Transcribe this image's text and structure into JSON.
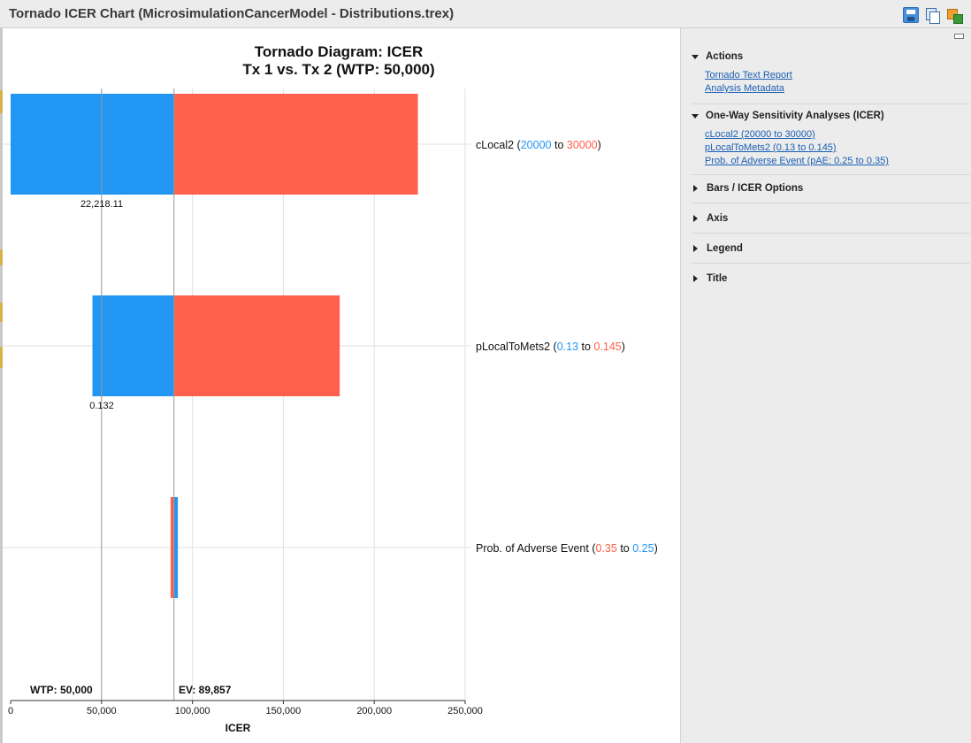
{
  "window": {
    "title": "Tornado ICER Chart (MicrosimulationCancerModel - Distributions.trex)"
  },
  "toolbar": {
    "icons": [
      "save-icon",
      "copy-icon",
      "export-icon"
    ]
  },
  "chart": {
    "title": "Tornado Diagram: ICER",
    "subtitle": "Tx 1 vs. Tx 2 (WTP: 50,000)",
    "xlabel": "ICER",
    "wtp_label": "WTP: 50,000",
    "ev_label": "EV: 89,857",
    "colors": {
      "low": "#2196f3",
      "high": "#ff604c"
    }
  },
  "chart_data": {
    "type": "bar",
    "orientation": "horizontal",
    "title": "Tornado Diagram: ICER",
    "subtitle": "Tx 1 vs. Tx 2 (WTP: 50,000)",
    "xlabel": "ICER",
    "xlim": [
      0,
      250000
    ],
    "xticks": [
      0,
      50000,
      100000,
      150000,
      200000,
      250000
    ],
    "xtick_labels": [
      "0",
      "50,000",
      "100,000",
      "150,000",
      "200,000",
      "250,000"
    ],
    "grid": true,
    "ev": 89857,
    "wtp": 50000,
    "bars": [
      {
        "name": "cLocal2",
        "param_low": "20000",
        "param_high": "30000",
        "low_icer": 0,
        "high_icer": 224000,
        "annotation": "22,218.11",
        "order": [
          "low",
          "high"
        ]
      },
      {
        "name": "pLocalToMets2",
        "param_low": "0.13",
        "param_high": "0.145",
        "low_icer": 45000,
        "high_icer": 181000,
        "annotation": "0.132",
        "order": [
          "low",
          "high"
        ]
      },
      {
        "name": "Prob. of Adverse Event",
        "param_low": "0.35",
        "param_high": "0.25",
        "low_icer": 88000,
        "high_icer": 92000,
        "annotation": "",
        "order": [
          "high",
          "low"
        ]
      }
    ]
  },
  "sidebar": {
    "actions": {
      "header": "Actions",
      "links": [
        "Tornado Text Report",
        "Analysis Metadata"
      ]
    },
    "one_way": {
      "header": "One-Way Sensitivity Analyses (ICER)",
      "links": [
        "cLocal2 (20000 to 30000)",
        "pLocalToMets2 (0.13 to 0.145)",
        "Prob. of Adverse Event (pAE: 0.25 to 0.35)"
      ]
    },
    "collapsed": [
      "Bars / ICER Options",
      "Axis",
      "Legend",
      "Title"
    ]
  }
}
